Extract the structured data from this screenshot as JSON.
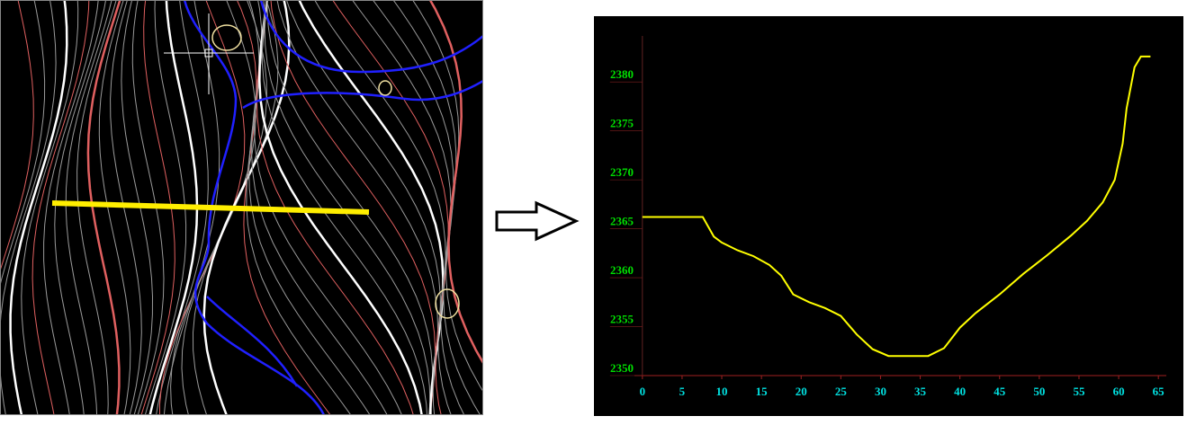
{
  "chart_data": {
    "type": "line",
    "x": [
      0,
      7.6,
      9,
      10,
      12,
      14,
      16,
      17.5,
      19,
      21,
      23,
      25,
      27,
      29,
      31,
      36,
      38,
      40,
      42,
      45,
      48,
      51,
      54,
      56,
      58,
      59.5,
      60.5,
      61,
      62,
      62.8,
      64
    ],
    "values": [
      2366.2,
      2366.2,
      2364.2,
      2363.6,
      2362.8,
      2362.2,
      2361.3,
      2360.2,
      2358.3,
      2357.5,
      2356.9,
      2356.1,
      2354.2,
      2352.7,
      2352,
      2352,
      2352.8,
      2354.9,
      2356.4,
      2358.3,
      2360.4,
      2362.3,
      2364.3,
      2365.8,
      2367.7,
      2370,
      2373.7,
      2377.3,
      2381.5,
      2382.6,
      2382.6
    ],
    "color": "#ffff00",
    "xlim": [
      -1,
      66
    ],
    "ylim": [
      2350,
      2384.7
    ],
    "xticks": [
      0,
      5,
      10,
      15,
      20,
      25,
      30,
      35,
      40,
      45,
      50,
      55,
      60,
      65
    ],
    "yticks": [
      2350,
      2355,
      2360,
      2365,
      2370,
      2375,
      2380
    ]
  }
}
